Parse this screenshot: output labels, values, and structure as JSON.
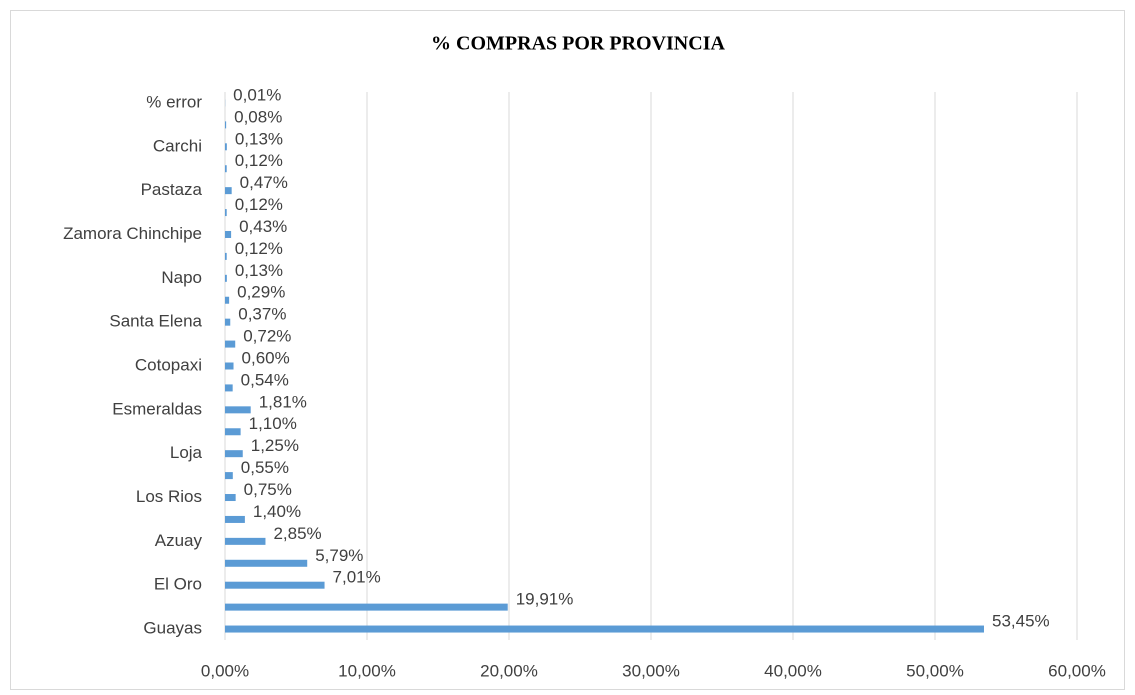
{
  "chart_data": {
    "type": "barh",
    "title": "% COMPRAS POR PROVINCIA",
    "categories": [
      "Guayas",
      null,
      "El Oro",
      null,
      "Azuay",
      null,
      "Los Rios",
      null,
      "Loja",
      null,
      "Esmeraldas",
      null,
      "Cotopaxi",
      null,
      "Santa Elena",
      null,
      "Napo",
      null,
      "Zamora Chinchipe",
      null,
      "Pastaza",
      null,
      "Carchi",
      null,
      "% error"
    ],
    "values": [
      53.45,
      19.91,
      7.01,
      5.79,
      2.85,
      1.4,
      0.75,
      0.55,
      1.25,
      1.1,
      1.81,
      0.54,
      0.6,
      0.72,
      0.37,
      0.29,
      0.13,
      0.12,
      0.43,
      0.12,
      0.47,
      0.12,
      0.13,
      0.08,
      0.01
    ],
    "value_labels": [
      "53,45%",
      "19,91%",
      "7,01%",
      "5,79%",
      "2,85%",
      "1,40%",
      "0,75%",
      "0,55%",
      "1,25%",
      "1,10%",
      "1,81%",
      "0,54%",
      "0,60%",
      "0,72%",
      "0,37%",
      "0,29%",
      "0,13%",
      "0,12%",
      "0,43%",
      "0,12%",
      "0,47%",
      "0,12%",
      "0,13%",
      "0,08%",
      "0,01%"
    ],
    "color": "#5b9bd5",
    "xlim": [
      0,
      60
    ],
    "xticks": [
      {
        "value": 0,
        "label": "0,00%"
      },
      {
        "value": 10,
        "label": "10,00%"
      },
      {
        "value": 20,
        "label": "20,00%"
      },
      {
        "value": 30,
        "label": "30,00%"
      },
      {
        "value": 40,
        "label": "40,00%"
      },
      {
        "value": 50,
        "label": "50,00%"
      },
      {
        "value": 60,
        "label": "60,00%"
      }
    ],
    "grid": true
  }
}
